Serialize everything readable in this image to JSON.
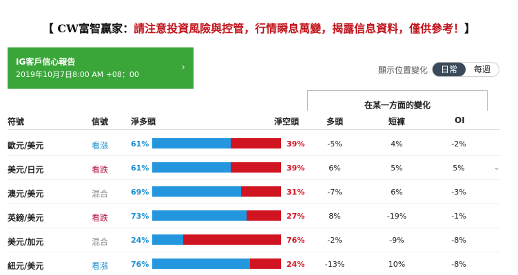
{
  "banner": {
    "prefix": "【 CW富智贏家：",
    "warning": "請注意投資風險與控管，行情瞬息萬變，揭露信息資料，僅供參考！",
    "suffix": "】"
  },
  "report": {
    "title": "IG客戶信心報告",
    "datetime": "2019年10月7日8:00 AM +08：00",
    "chevron_icon": "chevron-right-icon"
  },
  "position_toggle": {
    "label": "顯示位置變化",
    "options": [
      "日常",
      "每週"
    ],
    "active": "日常"
  },
  "change_header": "在某一方面的變化",
  "columns": {
    "symbol": "符號",
    "signal": "信號",
    "net_long": "淨多頭",
    "net_short": "淨空頭",
    "long": "多頭",
    "short": "短褲",
    "oi": "OI"
  },
  "colors": {
    "long": "#2396de",
    "short": "#d01421",
    "bull": "#1a8fd1",
    "bear": "#b0173f",
    "mixed": "#888888",
    "card": "#3aa63a"
  },
  "rows": [
    {
      "symbol": "歐元/美元",
      "signal": "看漲",
      "signal_type": "bull",
      "long_pct": "61%",
      "long_value": 61,
      "short_pct": "39%",
      "chg_long": "-5%",
      "chg_short": "4%",
      "chg_oi": "-2%"
    },
    {
      "symbol": "美元/日元",
      "signal": "看跌",
      "signal_type": "bear",
      "long_pct": "61%",
      "long_value": 61,
      "short_pct": "39%",
      "chg_long": "6%",
      "chg_short": "5%",
      "chg_oi": "5%"
    },
    {
      "symbol": "澳元/美元",
      "signal": "混合",
      "signal_type": "mixed",
      "long_pct": "69%",
      "long_value": 69,
      "short_pct": "31%",
      "chg_long": "-7%",
      "chg_short": "6%",
      "chg_oi": "-3%"
    },
    {
      "symbol": "英鎊/美元",
      "signal": "看跌",
      "signal_type": "bear",
      "long_pct": "73%",
      "long_value": 73,
      "short_pct": "27%",
      "chg_long": "8%",
      "chg_short": "-19%",
      "chg_oi": "-1%"
    },
    {
      "symbol": "美元/加元",
      "signal": "混合",
      "signal_type": "mixed",
      "long_pct": "24%",
      "long_value": 24,
      "short_pct": "76%",
      "chg_long": "-2%",
      "chg_short": "-9%",
      "chg_oi": "-8%"
    },
    {
      "symbol": "紐元/美元",
      "signal": "看漲",
      "signal_type": "bull",
      "long_pct": "76%",
      "long_value": 76,
      "short_pct": "24%",
      "chg_long": "-13%",
      "chg_short": "10%",
      "chg_oi": "-8%"
    }
  ],
  "expand_icon": "chevron-down-icon"
}
